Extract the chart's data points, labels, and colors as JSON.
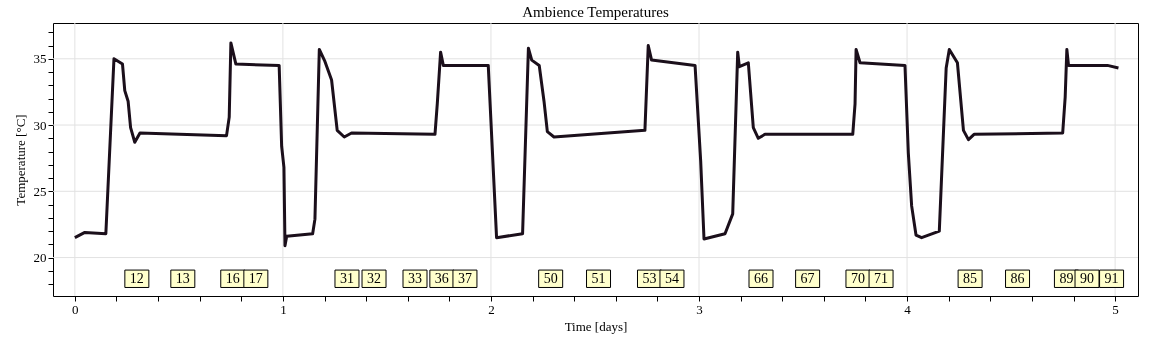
{
  "chart_data": {
    "type": "line",
    "title": "Ambience Temperatures",
    "xlabel": "Time [days]",
    "ylabel": "Temperature [°C]",
    "xlim": [
      -0.105,
      5.11
    ],
    "ylim": [
      17.1,
      37.7
    ],
    "xticks": [
      0,
      {
        "value": 0.2,
        "label": null
      },
      {
        "value": 0.4,
        "label": null
      },
      {
        "value": 0.6,
        "label": null
      },
      {
        "value": 0.8,
        "label": null
      },
      1,
      {
        "value": 1.2,
        "label": null
      },
      {
        "value": 1.4,
        "label": null
      },
      {
        "value": 1.6,
        "label": null
      },
      {
        "value": 1.8,
        "label": null
      },
      2,
      {
        "value": 2.2,
        "label": null
      },
      {
        "value": 2.4,
        "label": null
      },
      {
        "value": 2.6,
        "label": null
      },
      {
        "value": 2.8,
        "label": null
      },
      3,
      {
        "value": 3.2,
        "label": null
      },
      {
        "value": 3.4,
        "label": null
      },
      {
        "value": 3.6,
        "label": null
      },
      {
        "value": 3.8,
        "label": null
      },
      4,
      {
        "value": 4.2,
        "label": null
      },
      {
        "value": 4.4,
        "label": null
      },
      {
        "value": 4.6,
        "label": null
      },
      {
        "value": 4.8,
        "label": null
      },
      5
    ],
    "yticks": [
      {
        "value": 18,
        "label": null
      },
      {
        "value": 19,
        "label": null
      },
      20,
      {
        "value": 21,
        "label": null
      },
      {
        "value": 22,
        "label": null
      },
      {
        "value": 23,
        "label": null
      },
      {
        "value": 24,
        "label": null
      },
      25,
      {
        "value": 26,
        "label": null
      },
      {
        "value": 27,
        "label": null
      },
      {
        "value": 28,
        "label": null
      },
      {
        "value": 29,
        "label": null
      },
      30,
      {
        "value": 31,
        "label": null
      },
      {
        "value": 32,
        "label": null
      },
      {
        "value": 33,
        "label": null
      },
      {
        "value": 34,
        "label": null
      },
      35,
      {
        "value": 36,
        "label": null
      },
      {
        "value": 37,
        "label": null
      }
    ],
    "grid": true,
    "marker": "none",
    "line_style": "solid",
    "series": [
      {
        "color": "#1b0f1b",
        "x": [
          0,
          0.048,
          0.149,
          0.188,
          0.229,
          0.24,
          0.256,
          0.268,
          0.288,
          0.313,
          0.729,
          0.742,
          0.75,
          0.774,
          0.982,
          0.994,
          1.005,
          1.01,
          1.018,
          1.143,
          1.154,
          1.175,
          1.202,
          1.234,
          1.261,
          1.295,
          1.33,
          1.731,
          1.742,
          1.758,
          1.771,
          1.987,
          2.027,
          2.152,
          2.18,
          2.196,
          2.232,
          2.255,
          2.271,
          2.303,
          2.74,
          2.756,
          2.772,
          2.981,
          3.008,
          3.024,
          3.125,
          3.162,
          3.186,
          3.194,
          3.237,
          3.261,
          3.285,
          3.317,
          3.739,
          3.75,
          3.755,
          3.774,
          3.99,
          4.006,
          4.022,
          4.043,
          4.07,
          4.155,
          4.188,
          4.203,
          4.242,
          4.271,
          4.295,
          4.322,
          4.748,
          4.76,
          4.768,
          4.776,
          4.963,
          5.016
        ],
        "values": [
          21.5,
          21.9,
          21.8,
          35.0,
          34.6,
          32.6,
          31.8,
          29.8,
          28.7,
          29.4,
          29.2,
          30.6,
          36.2,
          34.6,
          34.5,
          28.4,
          26.8,
          20.9,
          21.6,
          21.8,
          22.9,
          35.7,
          34.8,
          33.4,
          29.6,
          29.1,
          29.4,
          29.3,
          31.6,
          35.5,
          34.5,
          34.5,
          21.5,
          21.8,
          35.8,
          34.9,
          34.5,
          31.8,
          29.5,
          29.1,
          29.6,
          36.0,
          34.9,
          34.5,
          27.3,
          21.4,
          21.8,
          23.3,
          35.5,
          34.4,
          34.7,
          29.8,
          29.0,
          29.3,
          29.3,
          31.6,
          35.7,
          34.7,
          34.5,
          27.9,
          23.9,
          21.7,
          21.5,
          22.0,
          34.3,
          35.7,
          34.7,
          29.6,
          28.9,
          29.3,
          29.4,
          32.1,
          35.7,
          34.5,
          34.5,
          34.3
        ]
      }
    ],
    "annotations": [
      {
        "text": "12",
        "x": 0.298,
        "y": 18.4
      },
      {
        "text": "13",
        "x": 0.519,
        "y": 18.4
      },
      {
        "text": "16",
        "x": 0.759,
        "y": 18.4
      },
      {
        "text": "17",
        "x": 0.87,
        "y": 18.4
      },
      {
        "text": "31",
        "x": 1.308,
        "y": 18.4
      },
      {
        "text": "32",
        "x": 1.438,
        "y": 18.4
      },
      {
        "text": "33",
        "x": 1.635,
        "y": 18.4
      },
      {
        "text": "36",
        "x": 1.764,
        "y": 18.4
      },
      {
        "text": "37",
        "x": 1.875,
        "y": 18.4
      },
      {
        "text": "50",
        "x": 2.287,
        "y": 18.4
      },
      {
        "text": "51",
        "x": 2.517,
        "y": 18.4
      },
      {
        "text": "53",
        "x": 2.762,
        "y": 18.4
      },
      {
        "text": "54",
        "x": 2.87,
        "y": 18.4
      },
      {
        "text": "66",
        "x": 3.298,
        "y": 18.4
      },
      {
        "text": "67",
        "x": 3.522,
        "y": 18.4
      },
      {
        "text": "70",
        "x": 3.764,
        "y": 18.4
      },
      {
        "text": "71",
        "x": 3.875,
        "y": 18.4
      },
      {
        "text": "85",
        "x": 4.303,
        "y": 18.4
      },
      {
        "text": "86",
        "x": 4.531,
        "y": 18.4
      },
      {
        "text": "89",
        "x": 4.766,
        "y": 18.4
      },
      {
        "text": "90",
        "x": 4.865,
        "y": 18.4
      },
      {
        "text": "91",
        "x": 4.983,
        "y": 18.4
      }
    ]
  }
}
